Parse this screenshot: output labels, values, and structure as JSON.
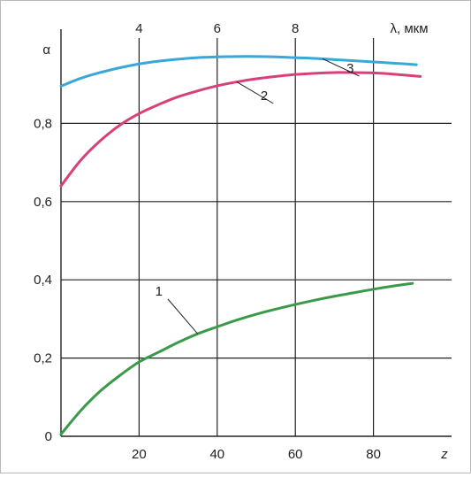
{
  "chart_data": {
    "type": "line",
    "ylabel": "α",
    "xlabel_bottom": "z",
    "xlabel_top": "λ, мкм",
    "xlim": [
      0,
      100
    ],
    "ylim": [
      0,
      1.0
    ],
    "x_ticks_bottom": [
      "20",
      "40",
      "60",
      "80"
    ],
    "x_ticks_bottom_values": [
      20,
      40,
      60,
      80
    ],
    "x_ticks_top": [
      "4",
      "6",
      "8"
    ],
    "x_ticks_top_values": [
      20,
      40,
      60
    ],
    "y_ticks": [
      "0",
      "0,2",
      "0,4",
      "0,6",
      "0,8"
    ],
    "y_ticks_values": [
      0,
      0.2,
      0.4,
      0.6,
      0.8
    ],
    "grid": true,
    "series": [
      {
        "name": "1",
        "color": "#3a9a4a",
        "x": [
          0,
          5,
          10,
          15,
          20,
          25,
          30,
          35,
          40,
          45,
          50,
          55,
          60,
          65,
          70,
          75,
          80,
          85,
          90
        ],
        "y": [
          0.005,
          0.065,
          0.115,
          0.155,
          0.19,
          0.215,
          0.24,
          0.262,
          0.28,
          0.297,
          0.312,
          0.325,
          0.337,
          0.348,
          0.358,
          0.367,
          0.376,
          0.384,
          0.391
        ]
      },
      {
        "name": "2",
        "color": "#d9407a",
        "x": [
          0,
          5,
          10,
          15,
          20,
          25,
          30,
          35,
          40,
          45,
          50,
          55,
          60,
          65,
          70,
          75,
          80,
          85,
          92
        ],
        "y": [
          0.64,
          0.705,
          0.755,
          0.795,
          0.825,
          0.848,
          0.868,
          0.883,
          0.896,
          0.906,
          0.914,
          0.92,
          0.925,
          0.928,
          0.93,
          0.93,
          0.929,
          0.926,
          0.92
        ]
      },
      {
        "name": "3",
        "color": "#3aa7d8",
        "x": [
          0,
          5,
          10,
          15,
          20,
          25,
          30,
          35,
          40,
          45,
          50,
          55,
          60,
          65,
          70,
          75,
          80,
          85,
          91
        ],
        "y": [
          0.895,
          0.915,
          0.93,
          0.942,
          0.952,
          0.959,
          0.964,
          0.968,
          0.97,
          0.971,
          0.971,
          0.97,
          0.968,
          0.966,
          0.963,
          0.96,
          0.957,
          0.954,
          0.95
        ]
      }
    ],
    "callouts": [
      {
        "label": "1",
        "at_x": 35,
        "at_y": 0.262,
        "text_x": 26,
        "text_y": 0.36
      },
      {
        "label": "2",
        "at_x": 45,
        "at_y": 0.906,
        "text_x": 53,
        "text_y": 0.86
      },
      {
        "label": "3",
        "at_x": 67,
        "at_y": 0.965,
        "text_x": 75,
        "text_y": 0.93
      }
    ]
  }
}
